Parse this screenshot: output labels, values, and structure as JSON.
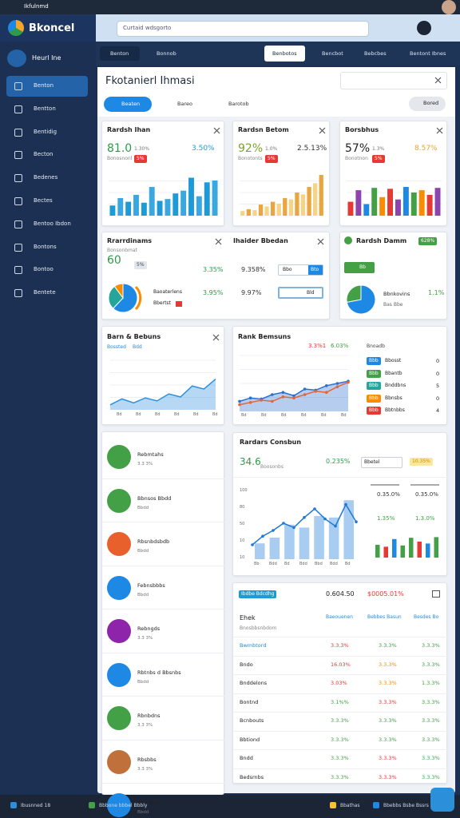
{
  "browser": {
    "tab": "Ikfulnmd",
    "address": "Curtaid wdsgorto"
  },
  "app": {
    "logo": "Bkoncel",
    "user": "Heurl Ine"
  },
  "sidebar": [
    "Benton",
    "Bentton",
    "Bentidig",
    "Becton",
    "Bedenes",
    "Bectes",
    "Bentoo Ibdon",
    "Bontons",
    "Bontoo",
    "Bentete"
  ],
  "tabs": [
    "Benton",
    "Bonnob",
    "Benbotos",
    "Bencbot",
    "Bebcbes",
    "Bentont Ibnes"
  ],
  "page": {
    "title": "Fkotanierl Ihmasi",
    "toolbar": [
      "Beaten",
      "Bareo",
      "Barotob"
    ],
    "action": "Bored"
  },
  "kpi_cards": [
    {
      "title": "Rardsh Ihan",
      "value": "81.0",
      "value_color": "#2e9a4a",
      "note": "1.30%",
      "change": "3.50%",
      "change_color": "#1e9bd7",
      "sub": "Bonosnonl",
      "badge": "5%",
      "colors": [
        "#1e9bd7",
        "#3aa8e0"
      ],
      "bars": [
        22,
        38,
        30,
        45,
        28,
        62,
        32,
        36,
        48,
        54,
        82,
        42,
        72,
        76
      ]
    },
    {
      "title": "Rardsn Betom",
      "value": "92%",
      "value_color": "#7aa52a",
      "note": "1.0%",
      "change": "2.5.13%",
      "change_color": "#333333",
      "sub": "Bonotonts",
      "badge": "5%",
      "colors": [
        "#f5d486",
        "#e9a640"
      ],
      "bars": [
        10,
        14,
        12,
        24,
        20,
        30,
        26,
        38,
        35,
        50,
        46,
        62,
        70,
        88
      ]
    },
    {
      "title": "Borsbhus",
      "value": "57%",
      "value_color": "#222222",
      "note": "1.3%",
      "change": "8.57%",
      "change_color": "#e8a531",
      "sub": "Bonotnon",
      "badge": "5%",
      "colors": [
        "#e53935",
        "#8e44ad",
        "#1e88e5",
        "#43a047",
        "#fb8c00"
      ],
      "bars": [
        30,
        55,
        25,
        60,
        40,
        58,
        35,
        62,
        50,
        55,
        45,
        60
      ]
    }
  ],
  "mid_card": {
    "title": "Rrarrdinams",
    "title2": "Ihaider Bbedan",
    "value": "60",
    "sub": "Bonsonbmat",
    "badge": "5%",
    "stats": [
      "3.35%",
      "9.358%",
      "3.95%",
      "9.97%"
    ],
    "buttons": [
      "Bbo",
      "Bto",
      "Bld"
    ],
    "legend": [
      "Baoaterlens",
      "Bbertst"
    ],
    "donut": [
      62,
      28,
      10
    ],
    "donut_colors": [
      "#1e88e5",
      "#26a69a",
      "#fb8c00"
    ]
  },
  "pie_card": {
    "title": "Rardsh Damm",
    "badge": "628%",
    "button": "Bb",
    "label": "Bbnkovins",
    "change": "1.1%",
    "note": "Bas Bbe",
    "pie": [
      72,
      28
    ],
    "pie_colors": [
      "#1e88e5",
      "#43a047"
    ]
  },
  "area_card": {
    "title": "Barn & Bebuns",
    "sub": "Bossted",
    "badge": "Bdd",
    "x_labels": [
      "Bd",
      "Bd",
      "Bd",
      "Bd",
      "Bd",
      "Bd"
    ],
    "values": [
      10,
      22,
      14,
      24,
      18,
      32,
      26,
      48,
      42,
      62
    ],
    "color": "#2d8fe0"
  },
  "line_card": {
    "title": "Rank Bemsuns",
    "stat1": "3.3%1",
    "stat2": "6.03%",
    "sub": "Bnoadb",
    "x_labels": [
      "Bd",
      "Bd",
      "Bd",
      "Bd",
      "Bd",
      "Bd"
    ],
    "series": [
      {
        "color": "#2d6fd0",
        "values": [
          18,
          24,
          22,
          30,
          34,
          28,
          40,
          38,
          46,
          50,
          54
        ]
      },
      {
        "color": "#e2663a",
        "values": [
          12,
          16,
          20,
          18,
          26,
          24,
          30,
          36,
          34,
          44,
          52
        ]
      }
    ],
    "legend": [
      {
        "badge": "Bbb",
        "label": "Bbosst",
        "value": "0",
        "color": "#1e88e5"
      },
      {
        "badge": "Bbb",
        "label": "Bbantb",
        "value": "0",
        "color": "#43a047"
      },
      {
        "badge": "Bbb",
        "label": "Bnddbns",
        "value": "5",
        "color": "#26a69a"
      },
      {
        "badge": "Bbb",
        "label": "Bbnsbs",
        "value": "0",
        "color": "#fb8c00"
      },
      {
        "badge": "Bbb",
        "label": "Bbtnbbs",
        "value": "4",
        "color": "#e53935"
      }
    ]
  },
  "list": [
    {
      "title": "Rebmtahs",
      "sub": "3.3 3%",
      "color": "#43a047"
    },
    {
      "title": "Bbnsos Bbdd",
      "sub": "Bbdd",
      "color": "#43a047"
    },
    {
      "title": "Rbsnbdsbdb",
      "sub": "Bbdd",
      "color": "#e8602c"
    },
    {
      "title": "Febnsbbbs",
      "sub": "Bbdd",
      "color": "#1e88e5"
    },
    {
      "title": "Rebngds",
      "sub": "3.3 3%",
      "color": "#8e24aa"
    },
    {
      "title": "Rbtnbs d Bbsnbs",
      "sub": "Bbdd",
      "color": "#1e88e5"
    },
    {
      "title": "Rbnbdns",
      "sub": "3.3 3%",
      "color": "#43a047"
    },
    {
      "title": "Rbsbbs",
      "sub": "3.3 3%",
      "color": "#c0703a"
    },
    {
      "title": "Rbnbtss",
      "sub": "Bbdd",
      "color": "#1e88e5"
    }
  ],
  "combo_card": {
    "title": "Rardars Consbun",
    "value": "34.6",
    "sub": "Boosonbs",
    "change": "0.235%",
    "select": "Bbetel",
    "badge": "10.35%",
    "y_labels": [
      "100",
      "80",
      "50",
      "10",
      "10"
    ],
    "x_labels": [
      "Bb",
      "Bdd",
      "Bd",
      "Bdd",
      "Bbd",
      "Bdd",
      "Bd"
    ],
    "bars": [
      22,
      30,
      48,
      44,
      60,
      58,
      82
    ],
    "line": [
      20,
      32,
      40,
      50,
      44,
      58,
      70,
      56,
      46,
      76,
      52
    ],
    "stats": [
      "0.35.0%",
      "0.35.0%",
      "1.35%",
      "1.3.0%"
    ],
    "mini_bars": [
      40,
      34,
      58,
      38,
      62,
      50,
      44,
      64
    ],
    "mini_colors": [
      "#43a047",
      "#e53935",
      "#1e88e5",
      "#43a047"
    ]
  },
  "table": {
    "badge": "Ibdbe Bdcdhg",
    "total": "0.604.50",
    "amount": "$0005.01%",
    "head": [
      "Ehek",
      "Baeouenen",
      "Bebbes Basun",
      "Besdes Bo"
    ],
    "sub": "Bnosbbsnbdom",
    "rows": [
      {
        "cells": [
          "Bwmbtord",
          "3.3.3%",
          "3.3.3%",
          "3.3.3%"
        ],
        "colors": [
          "#1e88e5",
          "#e53935",
          "#43a047",
          "#43a047"
        ]
      },
      {
        "cells": [
          "Bndo",
          "16.03%",
          "3.3.3%",
          "3.3.3%"
        ],
        "colors": [
          "#222222",
          "#e53935",
          "#fb8c00",
          "#43a047"
        ]
      },
      {
        "cells": [
          "Bnddelons",
          "3.03%",
          "3.3.3%",
          "1.3.3%"
        ],
        "colors": [
          "#222222",
          "#e53935",
          "#fb8c00",
          "#43a047"
        ]
      },
      {
        "cells": [
          "Bontnd",
          "3.1%%",
          "3.3.3%",
          "3.3.3%"
        ],
        "colors": [
          "#222222",
          "#43a047",
          "#e53935",
          "#43a047"
        ]
      },
      {
        "cells": [
          "Bcnbouts",
          "3.3.3%",
          "3.3.3%",
          "3.3.3%"
        ],
        "colors": [
          "#222222",
          "#43a047",
          "#43a047",
          "#43a047"
        ]
      },
      {
        "cells": [
          "Bbtiond",
          "3.3.3%",
          "3.3.3%",
          "3.3.3%"
        ],
        "colors": [
          "#222222",
          "#43a047",
          "#43a047",
          "#43a047"
        ]
      },
      {
        "cells": [
          "Bndd",
          "3.3.3%",
          "3.3.3%",
          "3.3.3%"
        ],
        "colors": [
          "#222222",
          "#43a047",
          "#e53935",
          "#43a047"
        ]
      },
      {
        "cells": [
          "Bedsrnbs",
          "3.3.3%",
          "3.3.3%",
          "3.3.3%"
        ],
        "colors": [
          "#222222",
          "#43a047",
          "#e53935",
          "#43a047"
        ]
      }
    ]
  },
  "footer": [
    "Ibusnned 18",
    "Bbbone bbbel Bbbly",
    "Bbathas",
    "Bbebbs Bsbe Bssrs"
  ]
}
